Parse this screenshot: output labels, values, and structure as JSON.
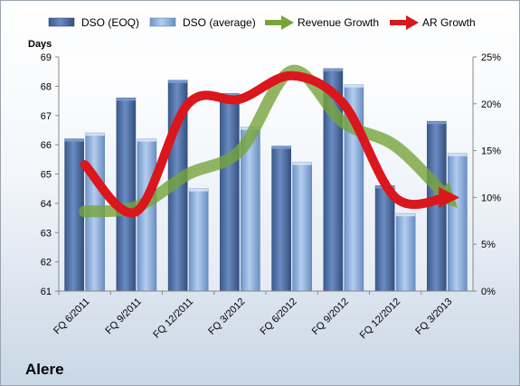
{
  "chart_data": {
    "type": "bar",
    "company": "Alere",
    "categories": [
      "FQ 6/2011",
      "FQ 9/2011",
      "FQ 12/2011",
      "FQ 3/2012",
      "FQ 6/2012",
      "FQ 9/2012",
      "FQ 12/2012",
      "FQ 3/2013"
    ],
    "left_axis": {
      "label": "Days",
      "min": 61,
      "max": 69,
      "ticks": [
        61,
        62,
        63,
        64,
        65,
        66,
        67,
        68,
        69
      ]
    },
    "right_axis": {
      "min": 0,
      "max": 25,
      "ticks": [
        "0%",
        "5%",
        "10%",
        "15%",
        "20%",
        "25%"
      ]
    },
    "series": [
      {
        "name": "DSO (EOQ)",
        "kind": "bar",
        "axis": "left",
        "color": "#4f6fa3",
        "values": [
          66.2,
          67.6,
          68.2,
          67.75,
          65.95,
          68.6,
          64.6,
          66.8
        ]
      },
      {
        "name": "DSO (average)",
        "kind": "bar",
        "axis": "left",
        "color": "#8fb0dc",
        "values": [
          66.4,
          66.2,
          64.5,
          66.6,
          65.4,
          68.05,
          63.65,
          65.7
        ]
      },
      {
        "name": "Revenue Growth",
        "kind": "line",
        "axis": "right",
        "color": "#77a43b",
        "unit": "%",
        "values": [
          8.5,
          9.0,
          12.5,
          15.0,
          23.5,
          18.0,
          15.5,
          10.0
        ]
      },
      {
        "name": "AR Growth",
        "kind": "line",
        "axis": "right",
        "color": "#d9171d",
        "unit": "%",
        "values": [
          13.5,
          8.5,
          20.0,
          20.5,
          23.0,
          20.0,
          10.0,
          10.0
        ]
      }
    ],
    "legend": {
      "position": "top"
    },
    "grid": false
  }
}
